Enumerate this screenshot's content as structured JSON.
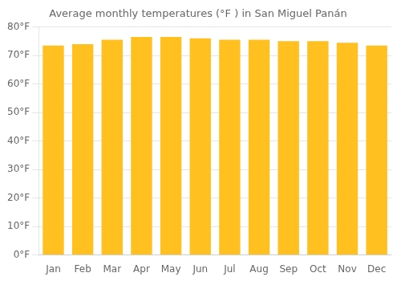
{
  "chart_data": {
    "type": "bar",
    "title": "Average monthly temperatures (°F ) in San Miguel Panán",
    "categories": [
      "Jan",
      "Feb",
      "Mar",
      "Apr",
      "May",
      "Jun",
      "Jul",
      "Aug",
      "Sep",
      "Oct",
      "Nov",
      "Dec"
    ],
    "values": [
      73.5,
      74.0,
      75.5,
      76.5,
      76.5,
      76.0,
      75.5,
      75.5,
      75.0,
      75.0,
      74.5,
      73.5
    ],
    "color": "#FFC020",
    "ylim": [
      0,
      80
    ],
    "yticks": [
      {
        "value": 0,
        "label": "0°F"
      },
      {
        "value": 10,
        "label": "10°F"
      },
      {
        "value": 20,
        "label": "20°F"
      },
      {
        "value": 30,
        "label": "30°F"
      },
      {
        "value": 40,
        "label": "40°F"
      },
      {
        "value": 50,
        "label": "50°F"
      },
      {
        "value": 60,
        "label": "60°F"
      },
      {
        "value": 70,
        "label": "70°F"
      },
      {
        "value": 80,
        "label": "80°F"
      }
    ],
    "grid": true
  }
}
